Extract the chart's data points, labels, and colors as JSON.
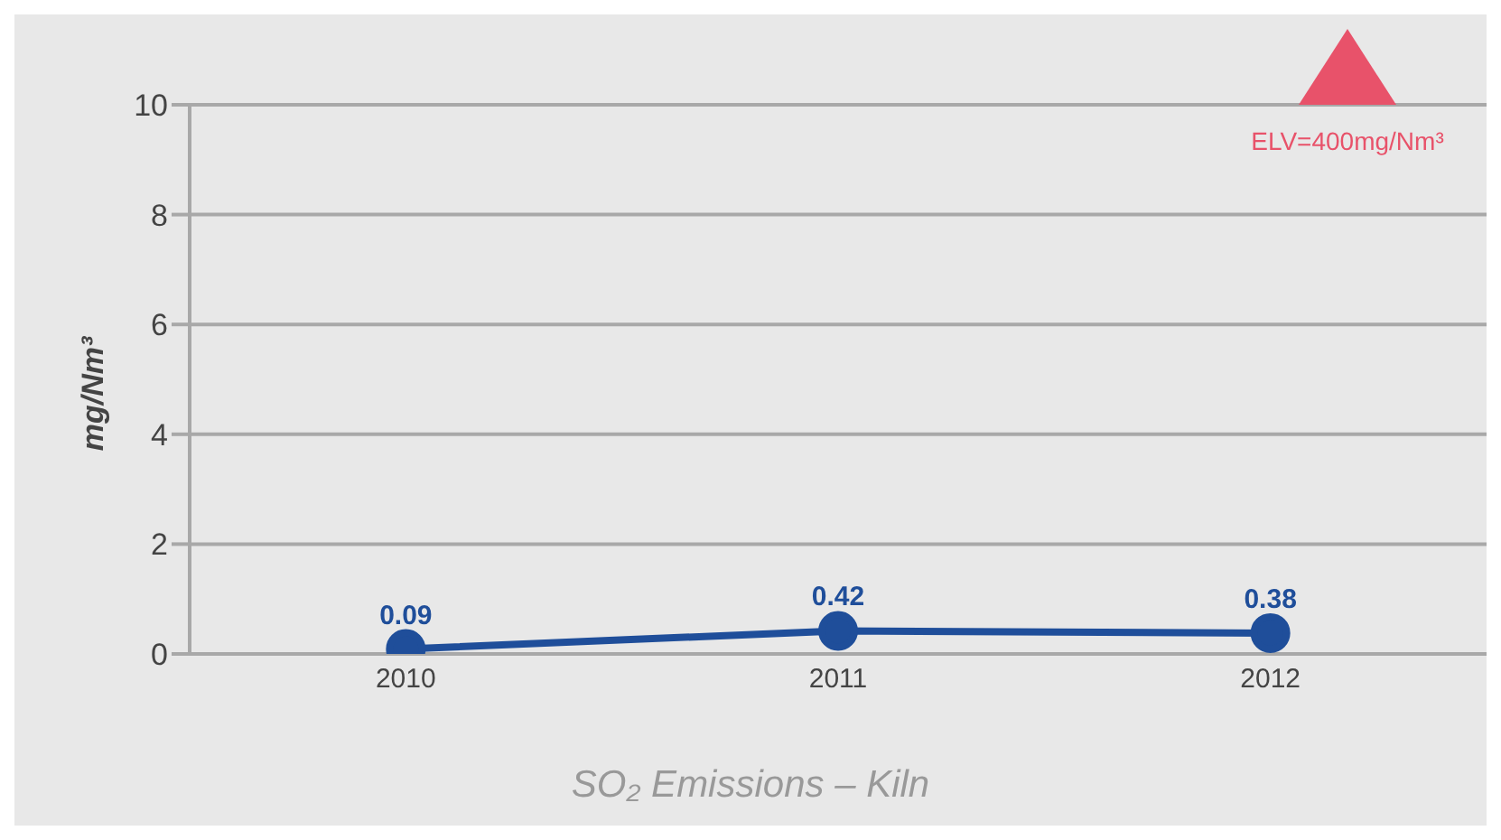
{
  "chart_data": {
    "type": "line",
    "categories": [
      "2010",
      "2011",
      "2012"
    ],
    "series": [
      {
        "color": "#1f4e9a",
        "values": [
          0.09,
          0.42,
          0.38
        ]
      }
    ],
    "ylim": [
      0,
      10
    ],
    "yticks": [
      0,
      2,
      4,
      6,
      8,
      10
    ],
    "ylabel": "mg/Nm³",
    "xlabel": "SO₂ Emissions – Kiln",
    "annotations": [
      "ELV=400mg/Nm³"
    ],
    "grid": "y",
    "marker": "circle",
    "line_style": "solid",
    "data_labels": true,
    "legend": false
  }
}
